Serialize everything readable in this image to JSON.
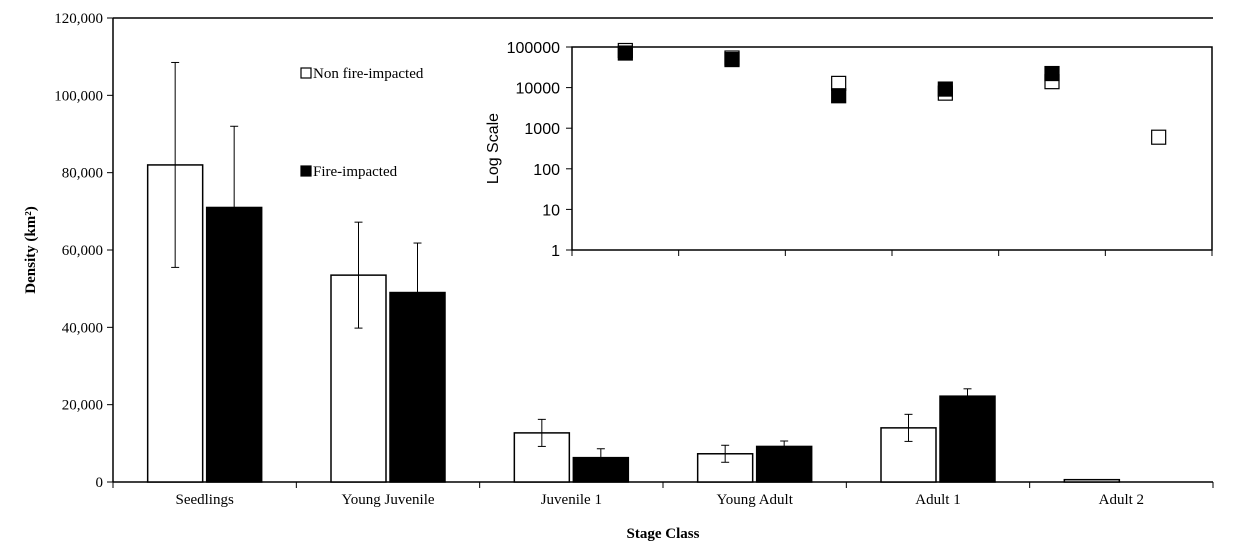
{
  "chart_data": [
    {
      "type": "bar",
      "xlabel": "Stage Class",
      "ylabel": "Density (km²)",
      "ylim": [
        0,
        120000
      ],
      "yticks": [
        0,
        20000,
        40000,
        60000,
        80000,
        100000,
        120000
      ],
      "ytick_labels": [
        "0",
        "20,000",
        "40,000",
        "60,000",
        "80,000",
        "100,000",
        "120,000"
      ],
      "categories": [
        "Seedlings",
        "Young Juvenile",
        "Juvenile 1",
        "Young Adult",
        "Adult 1",
        "Adult 2"
      ],
      "series": [
        {
          "name": "Non fire-impacted",
          "color": "#ffffff",
          "values": [
            82000,
            53500,
            12700,
            7300,
            14000,
            600
          ],
          "error": [
            26500,
            13700,
            3500,
            2200,
            3500,
            0
          ]
        },
        {
          "name": "Fire-impacted",
          "color": "#000000",
          "values": [
            71000,
            49000,
            6300,
            9200,
            22200,
            0
          ],
          "error": [
            21000,
            12800,
            2300,
            1400,
            1900,
            0
          ]
        }
      ],
      "legend": "inside top-left",
      "grid": false
    },
    {
      "type": "scatter",
      "ylabel": "Log Scale",
      "yscale": "log",
      "ylim": [
        1,
        100000
      ],
      "yticks": [
        1,
        10,
        100,
        1000,
        10000,
        100000
      ],
      "ytick_labels": [
        "1",
        "10",
        "100",
        "1000",
        "10000",
        "100000"
      ],
      "categories": [
        "Seedlings",
        "Young Juvenile",
        "Juvenile 1",
        "Young Adult",
        "Adult 1",
        "Adult 2"
      ],
      "series": [
        {
          "name": "Non fire-impacted",
          "marker": "open-square",
          "values": [
            82000,
            53500,
            12700,
            7300,
            14000,
            600
          ]
        },
        {
          "name": "Fire-impacted",
          "marker": "filled-square",
          "values": [
            71000,
            49000,
            6300,
            9200,
            22200,
            null
          ]
        }
      ],
      "grid": false
    }
  ]
}
